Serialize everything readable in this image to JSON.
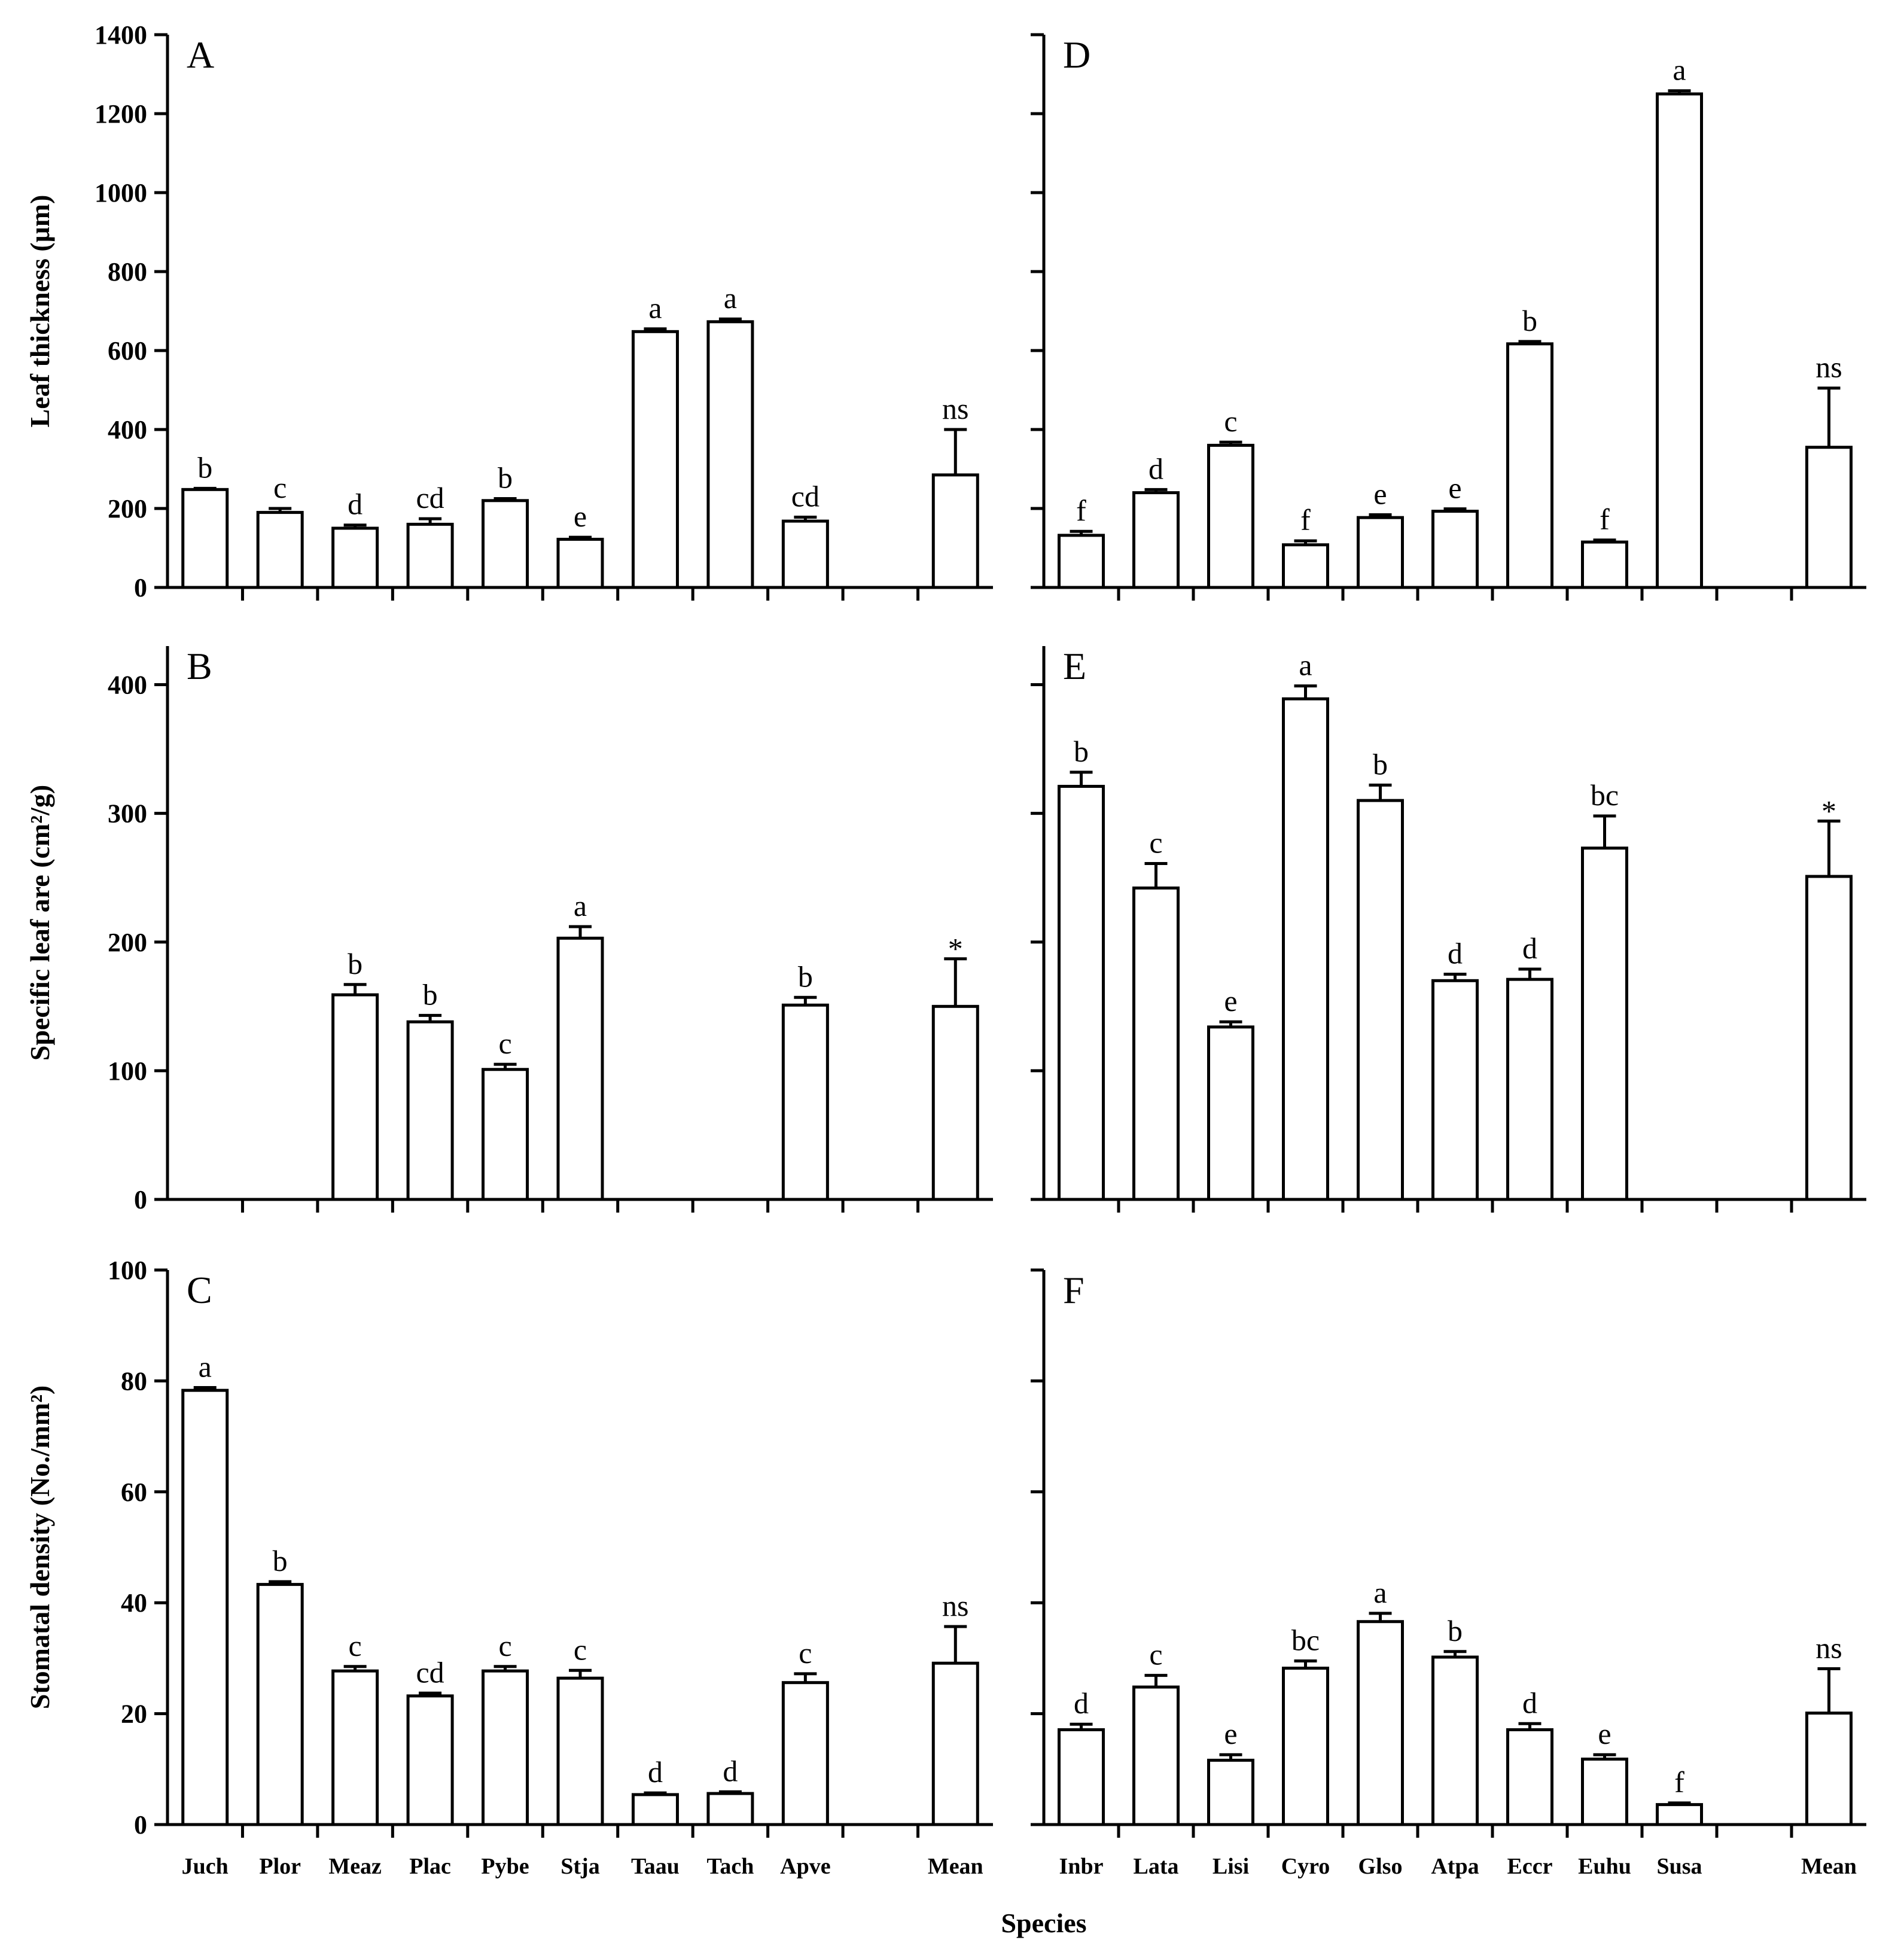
{
  "xlabel": "Species",
  "chart_data": [
    {
      "type": "bar",
      "panel": "A",
      "ylabel": "Leaf thickness (μm)",
      "ylim": [
        0,
        1400
      ],
      "yticks": [
        0,
        200,
        400,
        600,
        800,
        1000,
        1200,
        1400
      ],
      "ytick_labels": true,
      "categories": [
        "Juch",
        "Plor",
        "Meaz",
        "Plac",
        "Pybe",
        "Stja",
        "Taau",
        "Tach",
        "Apve",
        "",
        "Mean"
      ],
      "category_labels_shown": false,
      "values": [
        248,
        190,
        150,
        160,
        220,
        122,
        648,
        673,
        168,
        null,
        285
      ],
      "errors": [
        3,
        10,
        8,
        14,
        5,
        5,
        7,
        7,
        10,
        null,
        115
      ],
      "labels": [
        "b",
        "c",
        "d",
        "cd",
        "b",
        "e",
        "a",
        "a",
        "cd",
        "",
        "ns"
      ]
    },
    {
      "type": "bar",
      "panel": "B",
      "ylabel": "Specific leaf are (cm²/g)",
      "ylim": [
        0,
        430
      ],
      "yticks": [
        0,
        100,
        200,
        300,
        400
      ],
      "ytick_labels": true,
      "categories": [
        "Juch",
        "Plor",
        "Meaz",
        "Plac",
        "Pybe",
        "Stja",
        "Taau",
        "Tach",
        "Apve",
        "",
        "Mean"
      ],
      "category_labels_shown": false,
      "values": [
        null,
        null,
        159,
        138,
        101,
        203,
        null,
        null,
        151,
        null,
        150
      ],
      "errors": [
        null,
        null,
        8,
        5,
        4,
        9,
        null,
        null,
        6,
        null,
        37
      ],
      "labels": [
        "",
        "",
        "b",
        "b",
        "c",
        "a",
        "",
        "",
        "b",
        "",
        "*"
      ]
    },
    {
      "type": "bar",
      "panel": "C",
      "ylabel": "Stomatal density (No./mm²)",
      "ylim": [
        0,
        100
      ],
      "yticks": [
        0,
        20,
        40,
        60,
        80,
        100
      ],
      "ytick_labels": true,
      "categories": [
        "Juch",
        "Plor",
        "Meaz",
        "Plac",
        "Pybe",
        "Stja",
        "Taau",
        "Tach",
        "Apve",
        "",
        "Mean"
      ],
      "category_labels_shown": true,
      "values": [
        78.3,
        43.3,
        27.7,
        23.2,
        27.7,
        26.4,
        5.4,
        5.6,
        25.6,
        null,
        29.1
      ],
      "errors": [
        0.5,
        0.5,
        0.8,
        0.5,
        0.8,
        1.4,
        0.3,
        0.3,
        1.6,
        null,
        6.6
      ],
      "labels": [
        "a",
        "b",
        "c",
        "cd",
        "c",
        "c",
        "d",
        "d",
        "c",
        "",
        "ns"
      ]
    },
    {
      "type": "bar",
      "panel": "D",
      "ylabel": "",
      "ylim": [
        0,
        1400
      ],
      "yticks": [
        0,
        200,
        400,
        600,
        800,
        1000,
        1200,
        1400
      ],
      "ytick_labels": false,
      "categories": [
        "Inbr",
        "Lata",
        "Lisi",
        "Cyro",
        "Glso",
        "Atpa",
        "Eccr",
        "Euhu",
        "Susa",
        "",
        "Mean"
      ],
      "category_labels_shown": false,
      "values": [
        132,
        240,
        360,
        108,
        177,
        193,
        617,
        115,
        1250,
        null,
        355
      ],
      "errors": [
        10,
        8,
        8,
        10,
        7,
        6,
        6,
        5,
        8,
        null,
        150
      ],
      "labels": [
        "f",
        "d",
        "c",
        "f",
        "e",
        "e",
        "b",
        "f",
        "a",
        "",
        "ns"
      ]
    },
    {
      "type": "bar",
      "panel": "E",
      "ylabel": "",
      "ylim": [
        0,
        430
      ],
      "yticks": [
        0,
        100,
        200,
        300,
        400
      ],
      "ytick_labels": false,
      "categories": [
        "Inbr",
        "Lata",
        "Lisi",
        "Cyro",
        "Glso",
        "Atpa",
        "Eccr",
        "Euhu",
        "Susa",
        "",
        "Mean"
      ],
      "category_labels_shown": false,
      "values": [
        321,
        242,
        134,
        389,
        310,
        170,
        171,
        273,
        null,
        null,
        251
      ],
      "errors": [
        11,
        19,
        4,
        10,
        12,
        5,
        8,
        25,
        null,
        null,
        43
      ],
      "labels": [
        "b",
        "c",
        "e",
        "a",
        "b",
        "d",
        "d",
        "bc",
        "",
        "",
        "*"
      ]
    },
    {
      "type": "bar",
      "panel": "F",
      "ylabel": "",
      "ylim": [
        0,
        100
      ],
      "yticks": [
        0,
        20,
        40,
        60,
        80,
        100
      ],
      "ytick_labels": false,
      "categories": [
        "Inbr",
        "Lata",
        "Lisi",
        "Cyro",
        "Glso",
        "Atpa",
        "Eccr",
        "Euhu",
        "Susa",
        "",
        "Mean"
      ],
      "category_labels_shown": true,
      "values": [
        17.1,
        24.8,
        11.6,
        28.2,
        36.6,
        30.2,
        17.1,
        11.8,
        3.6,
        null,
        20.1
      ],
      "errors": [
        1.0,
        2.1,
        1.0,
        1.3,
        1.5,
        1.0,
        1.1,
        0.8,
        0.3,
        null,
        8.0
      ],
      "labels": [
        "d",
        "c",
        "e",
        "bc",
        "a",
        "b",
        "d",
        "e",
        "f",
        "",
        "ns"
      ]
    }
  ]
}
